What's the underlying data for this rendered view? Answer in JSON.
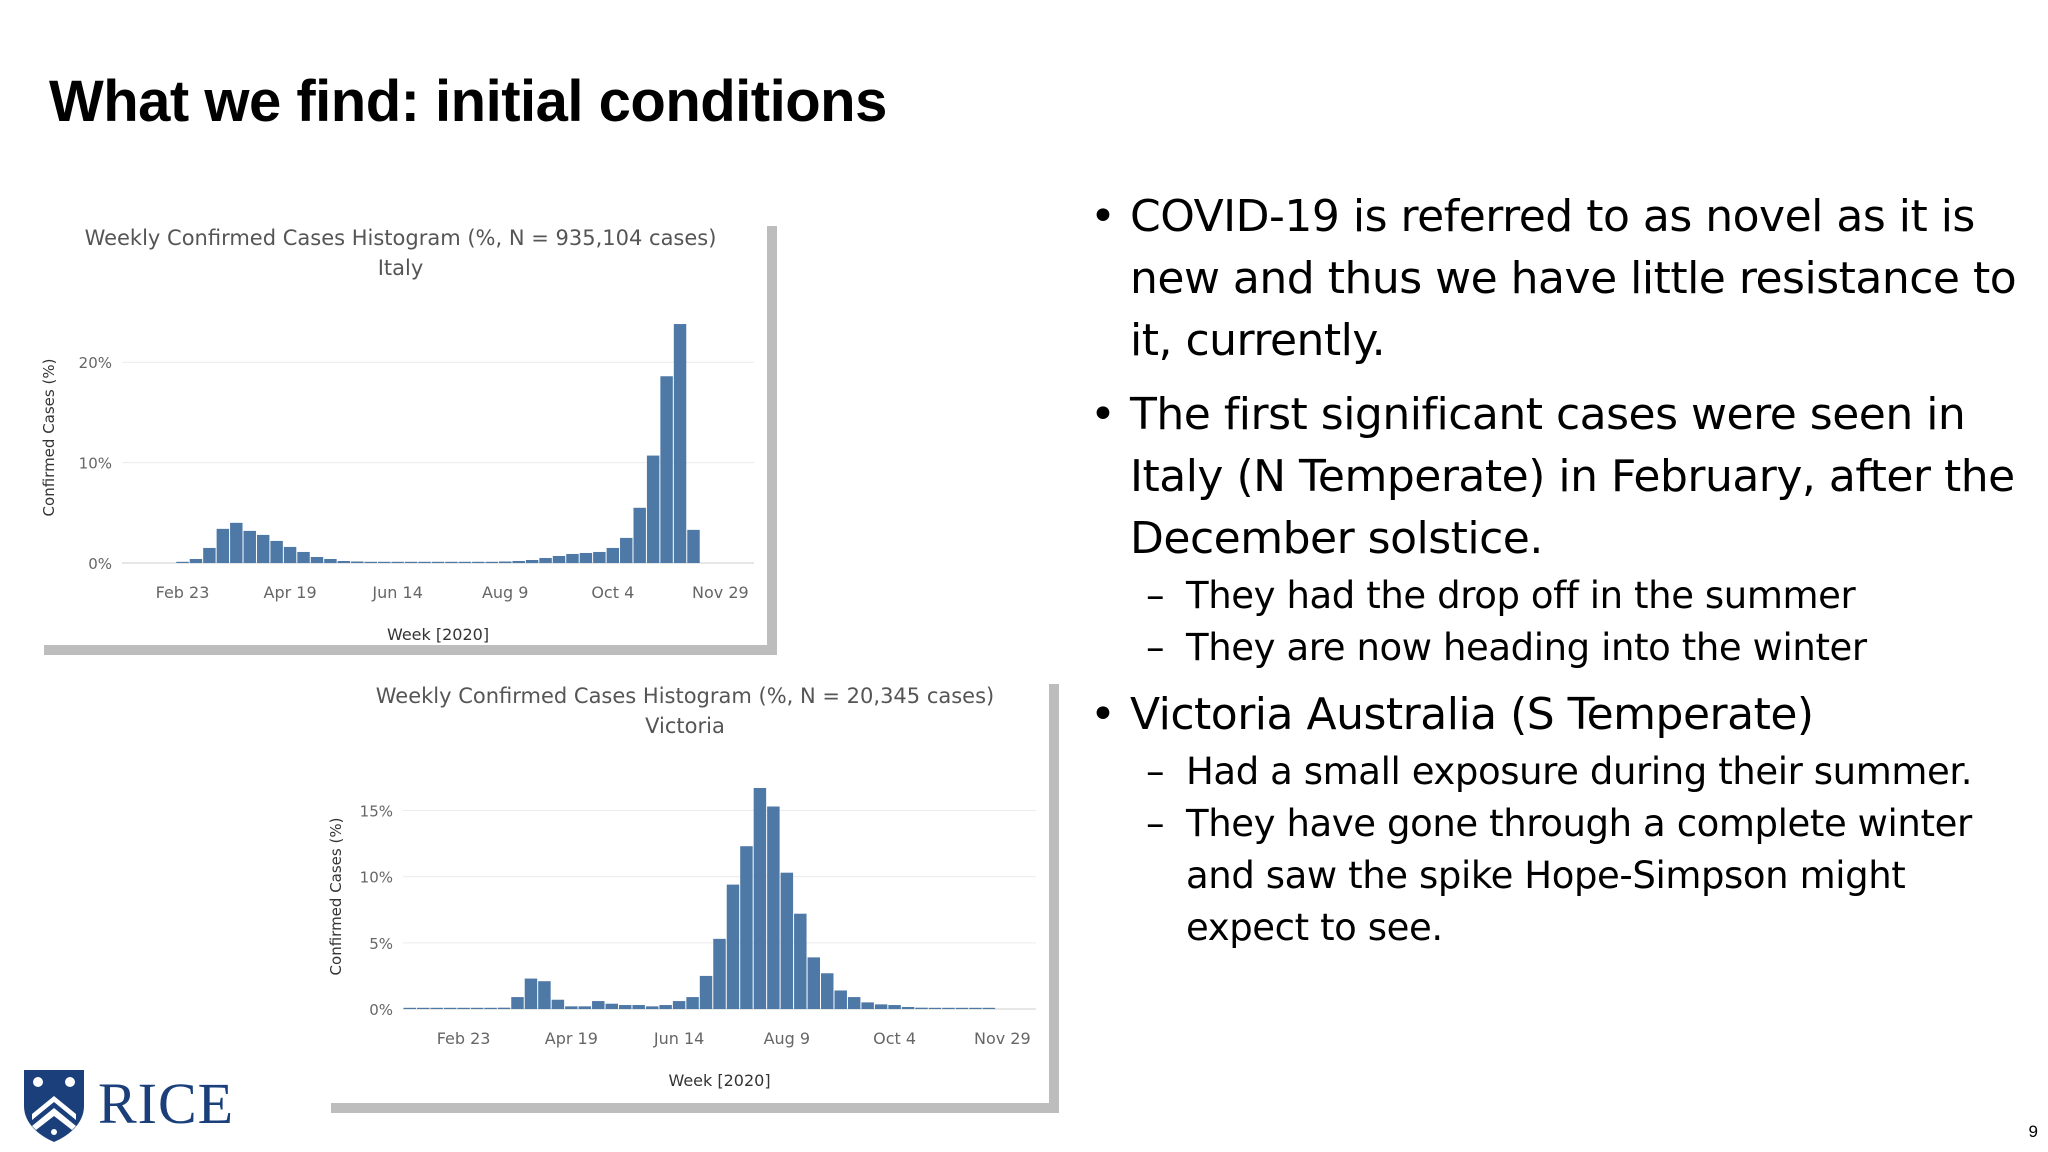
{
  "slide": {
    "title": "What we find: initial conditions",
    "page_number": "9",
    "logo_text": "RICE"
  },
  "bullets": [
    {
      "text": "COVID-19 is referred to as novel as it is new and thus we have little resistance to it, currently.",
      "subs": []
    },
    {
      "text": "The first significant cases were seen in Italy (N Temperate) in February, after the December solstice.",
      "subs": [
        "They had the drop off in the summer",
        "They are now heading into the winter"
      ]
    },
    {
      "text": "Victoria Australia (S Temperate)",
      "subs": [
        "Had a small exposure during their summer.",
        "They have gone through a complete winter and saw the spike Hope-Simpson might expect to see."
      ]
    }
  ],
  "chart_data": [
    {
      "type": "bar",
      "title": "Weekly Confirmed Cases Histogram (%, N = 935,104 cases)",
      "subtitle": "Italy",
      "xlabel": "Week [2020]",
      "ylabel": "Confirmed Cases (%)",
      "x_ticks": [
        "Feb 23",
        "Apr 19",
        "Jun 14",
        "Aug 9",
        "Oct 4",
        "Nov 29"
      ],
      "y_ticks": [
        "0%",
        "10%",
        "20%"
      ],
      "ylim": [
        0,
        25
      ],
      "x_weeks": [
        "Jan 26",
        "Feb 2",
        "Feb 9",
        "Feb 16",
        "Feb 23",
        "Mar 1",
        "Mar 8",
        "Mar 15",
        "Mar 22",
        "Mar 29",
        "Apr 5",
        "Apr 12",
        "Apr 19",
        "Apr 26",
        "May 3",
        "May 10",
        "May 17",
        "May 24",
        "May 31",
        "Jun 7",
        "Jun 14",
        "Jun 21",
        "Jun 28",
        "Jul 5",
        "Jul 12",
        "Jul 19",
        "Jul 26",
        "Aug 2",
        "Aug 9",
        "Aug 16",
        "Aug 23",
        "Aug 30",
        "Sep 6",
        "Sep 13",
        "Sep 20",
        "Sep 27",
        "Oct 4",
        "Oct 11",
        "Oct 18",
        "Oct 25",
        "Nov 1",
        "Nov 8",
        "Nov 15",
        "Nov 22",
        "Nov 29",
        "Dec 6",
        "Dec 13"
      ],
      "values": [
        0.0,
        0.0,
        0.0,
        0.0,
        0.1,
        0.4,
        1.5,
        3.4,
        4.0,
        3.2,
        2.8,
        2.2,
        1.6,
        1.1,
        0.6,
        0.4,
        0.2,
        0.15,
        0.1,
        0.05,
        0.05,
        0.05,
        0.05,
        0.05,
        0.05,
        0.05,
        0.05,
        0.1,
        0.15,
        0.2,
        0.3,
        0.5,
        0.7,
        0.9,
        1.0,
        1.1,
        1.5,
        2.5,
        5.5,
        10.7,
        18.6,
        23.8,
        3.3,
        0,
        0,
        0,
        0
      ],
      "grid": true,
      "color": "#4e79a7"
    },
    {
      "type": "bar",
      "title": "Weekly Confirmed Cases Histogram (%, N = 20,345 cases)",
      "subtitle": "Victoria",
      "xlabel": "Week [2020]",
      "ylabel": "Confirmed Cases (%)",
      "x_ticks": [
        "Feb 23",
        "Apr 19",
        "Jun 14",
        "Aug 9",
        "Oct 4",
        "Nov 29"
      ],
      "y_ticks": [
        "0%",
        "5%",
        "10%",
        "15%"
      ],
      "ylim": [
        0,
        17
      ],
      "x_weeks": [
        "Jan 26",
        "Feb 2",
        "Feb 9",
        "Feb 16",
        "Feb 23",
        "Mar 1",
        "Mar 8",
        "Mar 15",
        "Mar 22",
        "Mar 29",
        "Apr 5",
        "Apr 12",
        "Apr 19",
        "Apr 26",
        "May 3",
        "May 10",
        "May 17",
        "May 24",
        "May 31",
        "Jun 7",
        "Jun 14",
        "Jun 21",
        "Jun 28",
        "Jul 5",
        "Jul 12",
        "Jul 19",
        "Jul 26",
        "Aug 2",
        "Aug 9",
        "Aug 16",
        "Aug 23",
        "Aug 30",
        "Sep 6",
        "Sep 13",
        "Sep 20",
        "Sep 27",
        "Oct 4",
        "Oct 11",
        "Oct 18",
        "Oct 25",
        "Nov 1",
        "Nov 8",
        "Nov 15",
        "Nov 22",
        "Nov 29",
        "Dec 6",
        "Dec 13"
      ],
      "values": [
        0.05,
        0.05,
        0.05,
        0.05,
        0.05,
        0.05,
        0.05,
        0.1,
        0.9,
        2.3,
        2.1,
        0.7,
        0.2,
        0.2,
        0.6,
        0.4,
        0.3,
        0.3,
        0.2,
        0.3,
        0.6,
        0.9,
        2.5,
        5.3,
        9.4,
        12.3,
        16.7,
        15.3,
        10.3,
        7.2,
        3.9,
        2.7,
        1.4,
        0.9,
        0.5,
        0.35,
        0.3,
        0.15,
        0.1,
        0.05,
        0.05,
        0.05,
        0.05,
        0.05,
        0,
        0,
        0
      ],
      "grid": true,
      "color": "#4e79a7"
    }
  ]
}
